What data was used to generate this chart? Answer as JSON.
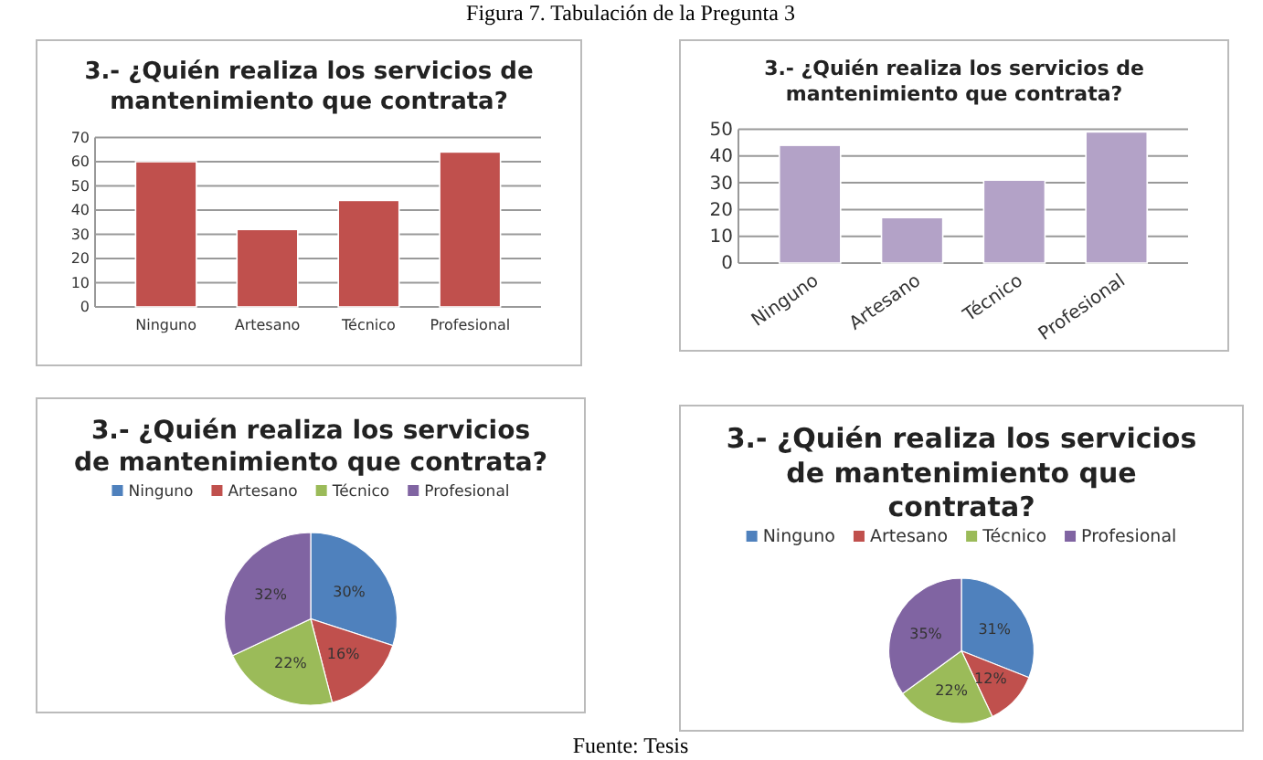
{
  "chart_data": [
    {
      "type": "bar",
      "title": "3.- ¿Quién realiza los servicios de mantenimiento que contrata?",
      "annotations": [
        "Figura 7. Tabulación de la Pregunta 3"
      ],
      "categories": [
        "Ninguno",
        "Artesano",
        "Técnico",
        "Profesional"
      ],
      "values": [
        60,
        32,
        44,
        64
      ],
      "color": "#c0504d",
      "ylim": [
        0,
        70
      ],
      "yticks": [
        0,
        10,
        20,
        30,
        40,
        50,
        60,
        70
      ],
      "grid": "y"
    },
    {
      "type": "bar",
      "title": "3.- ¿Quién realiza los servicios de mantenimiento que contrata?",
      "categories": [
        "Ninguno",
        "Artesano",
        "Técnico",
        "Profesional"
      ],
      "values": [
        44,
        17,
        31,
        49
      ],
      "color": "#b3a2c7",
      "ylim": [
        0,
        50
      ],
      "yticks": [
        0,
        10,
        20,
        30,
        40,
        50
      ],
      "grid": "y"
    },
    {
      "type": "pie",
      "title": "3.- ¿Quién realiza los servicios de mantenimiento que contrata?",
      "categories": [
        "Ninguno",
        "Artesano",
        "Técnico",
        "Profesional"
      ],
      "values": [
        30,
        16,
        22,
        32
      ],
      "value_labels": [
        "30%",
        "16%",
        "22%",
        "32%"
      ],
      "colors": [
        "#4f81bd",
        "#c0504d",
        "#9bbb59",
        "#8064a2"
      ],
      "legend": "top"
    },
    {
      "type": "pie",
      "title": "3.- ¿Quién realiza los servicios de mantenimiento que contrata?",
      "annotations": [
        "Fuente: Tesis"
      ],
      "categories": [
        "Ninguno",
        "Artesano",
        "Técnico",
        "Profesional"
      ],
      "values": [
        31,
        12,
        22,
        35
      ],
      "value_labels": [
        "31%",
        "12%",
        "22%",
        "35%"
      ],
      "colors": [
        "#4f81bd",
        "#c0504d",
        "#9bbb59",
        "#8064a2"
      ],
      "legend": "top"
    }
  ]
}
